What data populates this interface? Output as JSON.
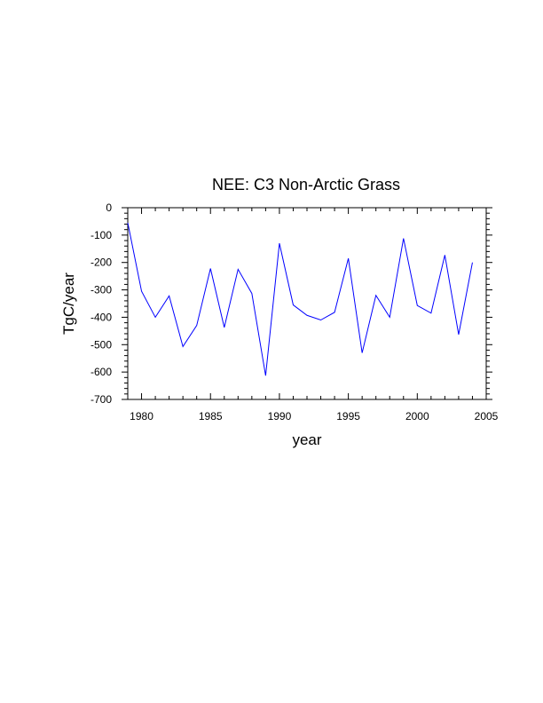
{
  "chart_data": {
    "type": "line",
    "title": "NEE: C3 Non-Arctic Grass",
    "xlabel": "year",
    "ylabel": "TgC/year",
    "xlim": [
      1979,
      2005
    ],
    "ylim": [
      -700,
      0
    ],
    "xticks": [
      1980,
      1985,
      1990,
      1995,
      2000,
      2005
    ],
    "yticks": [
      0,
      -100,
      -200,
      -300,
      -400,
      -500,
      -600,
      -700
    ],
    "grid": false,
    "line_color": "#0000ff",
    "series": [
      {
        "x": [
          1979,
          1980,
          1981,
          1982,
          1983,
          1984,
          1985,
          1986,
          1987,
          1988,
          1989,
          1990,
          1991,
          1992,
          1993,
          1994,
          1995,
          1996,
          1997,
          1998,
          1999,
          2000,
          2001,
          2002,
          2003,
          2004
        ],
        "values": [
          -55,
          -305,
          -400,
          -322,
          -507,
          -430,
          -222,
          -437,
          -225,
          -313,
          -613,
          -130,
          -355,
          -393,
          -410,
          -382,
          -185,
          -530,
          -320,
          -400,
          -112,
          -357,
          -385,
          -173,
          -463,
          -200
        ]
      }
    ]
  }
}
